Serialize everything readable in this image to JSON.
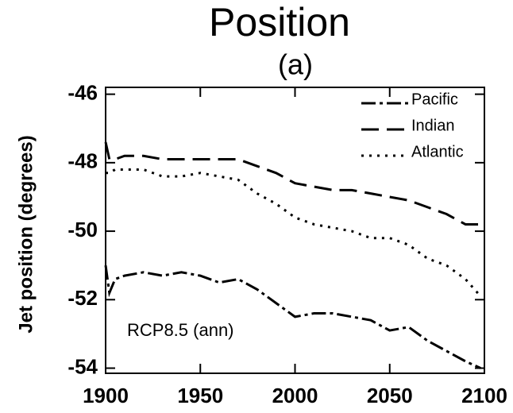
{
  "chart_data": {
    "type": "line",
    "title": "Position",
    "subtitle": "(a)",
    "y_label": "Jet position (degrees)",
    "annotation": "RCP8.5 (ann)",
    "x": [
      1900,
      1902,
      1905,
      1910,
      1920,
      1930,
      1940,
      1950,
      1960,
      1970,
      1980,
      1990,
      2000,
      2010,
      2020,
      2030,
      2040,
      2050,
      2060,
      2070,
      2080,
      2090,
      2098
    ],
    "series": [
      {
        "name": "Pacific",
        "color": "#000000",
        "dash": "dashdot",
        "values": [
          -51.0,
          -51.8,
          -51.4,
          -51.3,
          -51.2,
          -51.3,
          -51.2,
          -51.3,
          -51.5,
          -51.4,
          -51.7,
          -52.1,
          -52.5,
          -52.4,
          -52.4,
          -52.5,
          -52.6,
          -52.9,
          -52.8,
          -53.2,
          -53.5,
          -53.8,
          -54.0
        ]
      },
      {
        "name": "Indian",
        "color": "#000000",
        "dash": "longdash",
        "values": [
          -47.4,
          -47.9,
          -47.9,
          -47.8,
          -47.8,
          -47.9,
          -47.9,
          -47.9,
          -47.9,
          -47.9,
          -48.1,
          -48.3,
          -48.6,
          -48.7,
          -48.8,
          -48.8,
          -48.9,
          -49.0,
          -49.1,
          -49.3,
          -49.5,
          -49.8,
          -49.8
        ]
      },
      {
        "name": "Atlantic",
        "color": "#000000",
        "dash": "dotted",
        "values": [
          -48.3,
          -48.3,
          -48.2,
          -48.2,
          -48.2,
          -48.4,
          -48.4,
          -48.3,
          -48.4,
          -48.5,
          -48.9,
          -49.2,
          -49.6,
          -49.8,
          -49.9,
          -50.0,
          -50.2,
          -50.2,
          -50.4,
          -50.8,
          -51.0,
          -51.4,
          -51.9
        ]
      }
    ],
    "xlim": [
      1900,
      2100
    ],
    "xticks": [
      1900,
      1950,
      2000,
      2050,
      2100
    ],
    "ylim": [
      -54.15,
      -45.8
    ],
    "yticks": [
      -54,
      -52,
      -50,
      -48,
      -46
    ],
    "legend": "top-right"
  }
}
